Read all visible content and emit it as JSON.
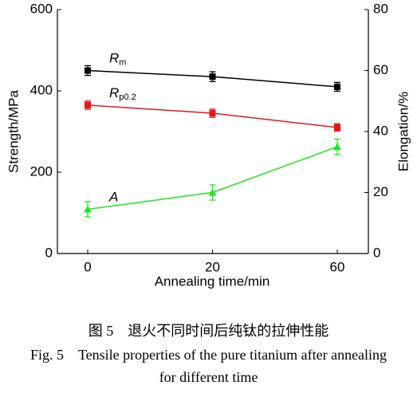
{
  "chart_data": {
    "type": "line",
    "x_label": "Annealing time/min",
    "y_label": "Strength/MPa",
    "y2_label": "Elongation/%",
    "categories": [
      "0",
      "20",
      "60"
    ],
    "ylim": [
      0,
      600
    ],
    "yticks": [
      0,
      200,
      400,
      600
    ],
    "y2lim": [
      0,
      80
    ],
    "y2ticks": [
      0,
      20,
      40,
      60,
      80
    ],
    "series": [
      {
        "name": "R",
        "name_sub": "m",
        "color": "#000000",
        "marker": "square",
        "values": [
          450,
          435,
          410
        ],
        "errors": [
          12,
          12,
          11
        ]
      },
      {
        "name": "R",
        "name_sub": "p0.2",
        "color": "#e8141c",
        "marker": "square",
        "values": [
          365,
          345,
          310
        ],
        "errors": [
          10,
          10,
          9
        ]
      },
      {
        "name": "A",
        "color": "#22e522",
        "marker": "triangle",
        "axis": "y2",
        "values": [
          14.5,
          20,
          35
        ],
        "errors": [
          2.5,
          2.5,
          2.5
        ]
      }
    ],
    "caption_cn": "图 5　退火不同时间后纯钛的拉伸性能",
    "caption_en": "Fig. 5　Tensile properties of the pure titanium after annealing for different time"
  }
}
